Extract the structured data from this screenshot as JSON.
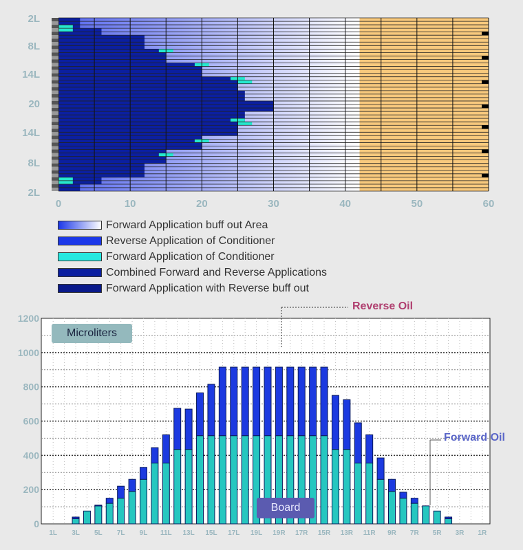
{
  "chart_data": [
    {
      "type": "heatmap",
      "x_ticks": [
        "0",
        "10",
        "20",
        "30",
        "40",
        "50",
        "60"
      ],
      "xlim": [
        0,
        60
      ],
      "y_labels": [
        "2L",
        "8L",
        "14L",
        "20",
        "14L",
        "8L",
        "2L"
      ],
      "rows": 50,
      "reverse_extent_units": [
        3,
        3,
        3,
        6,
        6,
        12,
        12,
        12,
        12,
        15,
        15,
        15,
        15,
        20,
        20,
        20,
        20,
        25,
        25,
        25,
        25,
        26,
        26,
        26,
        30,
        30,
        30,
        26,
        26,
        26,
        25,
        25,
        25,
        25,
        20,
        20,
        20,
        20,
        15,
        15,
        15,
        15,
        12,
        12,
        12,
        12,
        6,
        6,
        3,
        3
      ],
      "forward_marker_units": [
        null,
        null,
        0,
        0,
        null,
        null,
        null,
        null,
        null,
        14,
        null,
        null,
        null,
        19,
        null,
        null,
        null,
        24,
        25,
        null,
        null,
        null,
        null,
        null,
        null,
        null,
        null,
        null,
        null,
        24,
        25,
        null,
        null,
        null,
        null,
        19,
        null,
        null,
        null,
        14,
        null,
        null,
        null,
        null,
        null,
        null,
        0,
        0,
        null,
        null
      ],
      "buff_out_extent_units": 42,
      "colors": {
        "reverse": "#1c38e8",
        "forward": "#26e8cf",
        "combined": "#0b1fa0",
        "buff_out_start": "#5566ee",
        "buff_out_end": "#ffffff",
        "board_fill": "#f8c97d",
        "row_line": "#222222"
      }
    },
    {
      "type": "bar",
      "categories": [
        "1L",
        "2L",
        "3L",
        "4L",
        "5L",
        "6L",
        "7L",
        "8L",
        "9L",
        "10L",
        "11L",
        "12L",
        "13L",
        "14L",
        "15L",
        "16L",
        "17L",
        "18L",
        "19L",
        "20",
        "19R",
        "18R",
        "17R",
        "16R",
        "15R",
        "14R",
        "13R",
        "12R",
        "11R",
        "10R",
        "9R",
        "8R",
        "7R",
        "6R",
        "5R",
        "4R",
        "3R",
        "2R",
        "1R"
      ],
      "tick_labels_shown": [
        "1L",
        "3L",
        "5L",
        "7L",
        "9L",
        "11L",
        "13L",
        "15L",
        "17L",
        "19L",
        "19R",
        "17R",
        "15R",
        "13R",
        "11R",
        "9R",
        "7R",
        "5R",
        "3R",
        "1R"
      ],
      "ylim": [
        0,
        1200
      ],
      "y_ticks": [
        0,
        200,
        400,
        600,
        800,
        1000,
        1200
      ],
      "series": [
        {
          "name": "Forward Oil",
          "color": "#26c7c0",
          "values": [
            0,
            0,
            30,
            75,
            105,
            120,
            150,
            190,
            260,
            355,
            355,
            435,
            435,
            515,
            515,
            515,
            515,
            515,
            515,
            515,
            515,
            515,
            515,
            515,
            515,
            435,
            435,
            355,
            355,
            260,
            190,
            150,
            120,
            105,
            75,
            30,
            0,
            0,
            0
          ]
        },
        {
          "name": "Reverse Oil",
          "color": "#1c3ae0",
          "values": [
            0,
            0,
            10,
            0,
            5,
            30,
            70,
            70,
            70,
            90,
            165,
            240,
            235,
            250,
            300,
            400,
            400,
            400,
            400,
            400,
            400,
            400,
            400,
            400,
            400,
            315,
            290,
            235,
            165,
            125,
            70,
            35,
            30,
            0,
            0,
            10,
            0,
            0,
            0
          ]
        }
      ]
    }
  ],
  "legend": [
    {
      "label": "Forward Application buff out Area",
      "swatch": "gradient"
    },
    {
      "label": "Reverse Application of Conditioner",
      "swatch": "#1c38e8"
    },
    {
      "label": "Forward Application of Conditioner",
      "swatch": "#26e8e0"
    },
    {
      "label": "Combined Forward and Reverse Applications",
      "swatch": "#0b1fa0"
    },
    {
      "label": "Forward Application with Reverse buff out",
      "swatch": "#0a1a8a"
    }
  ],
  "annotations": {
    "reverse_oil": "Reverse Oil",
    "forward_oil": "Forward Oil",
    "microliters": "Microliters",
    "board": "Board"
  }
}
